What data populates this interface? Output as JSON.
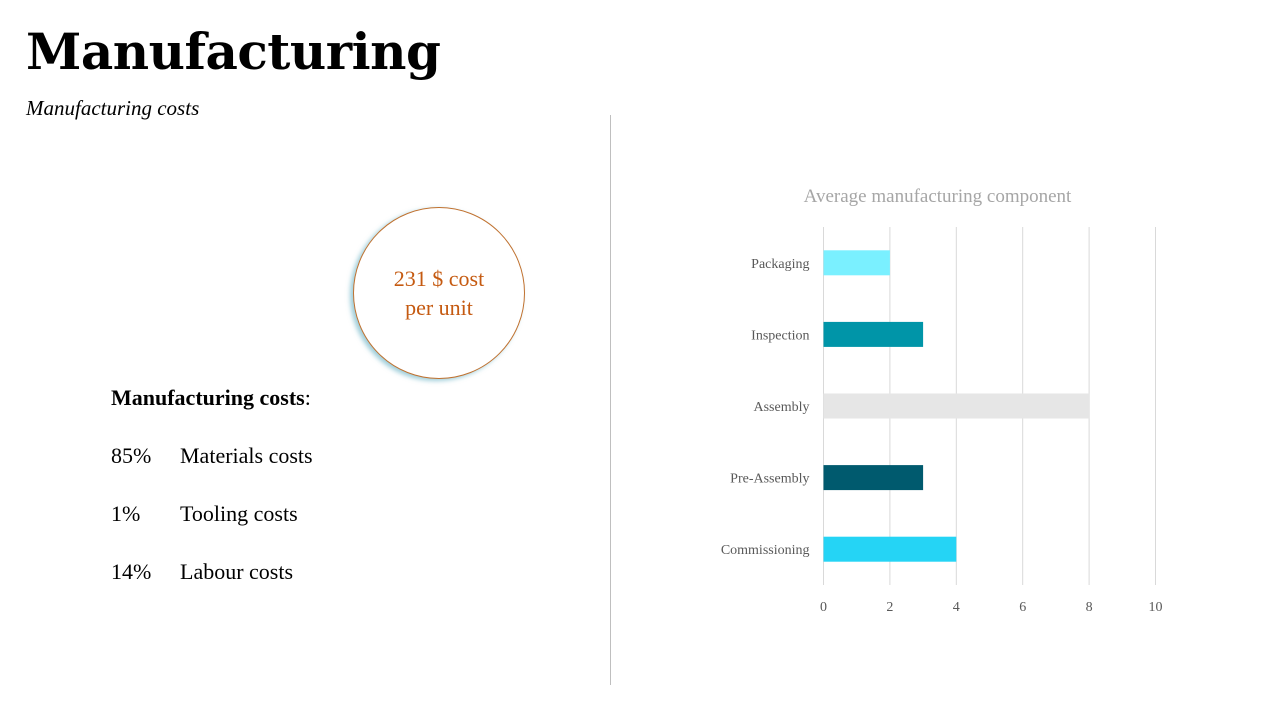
{
  "page": {
    "title": "Manufacturing",
    "subtitle": "Manufacturing costs"
  },
  "callout": {
    "line1": "231 $ cost",
    "line2": "per unit",
    "border_color": "#c0712f",
    "text_color": "#c55a11"
  },
  "costs": {
    "heading": "Manufacturing costs",
    "heading_suffix": ":",
    "items": [
      {
        "percent": "85%",
        "label": "Materials costs"
      },
      {
        "percent": "1%",
        "label": "Tooling costs"
      },
      {
        "percent": "14%",
        "label": "Labour costs"
      }
    ]
  },
  "chart_data": {
    "type": "bar",
    "orientation": "horizontal",
    "title": "Average manufacturing component",
    "categories": [
      "Packaging",
      "Inspection",
      "Assembly",
      "Pre-Assembly",
      "Commissioning"
    ],
    "values": [
      2,
      3,
      8,
      3,
      4
    ],
    "colors": [
      "#7af0ff",
      "#0095a8",
      "#e6e6e6",
      "#005a6e",
      "#25d4f5"
    ],
    "xlim": [
      0,
      10
    ],
    "xticks": [
      0,
      2,
      4,
      6,
      8,
      10
    ],
    "grid": true,
    "legend": "none"
  }
}
